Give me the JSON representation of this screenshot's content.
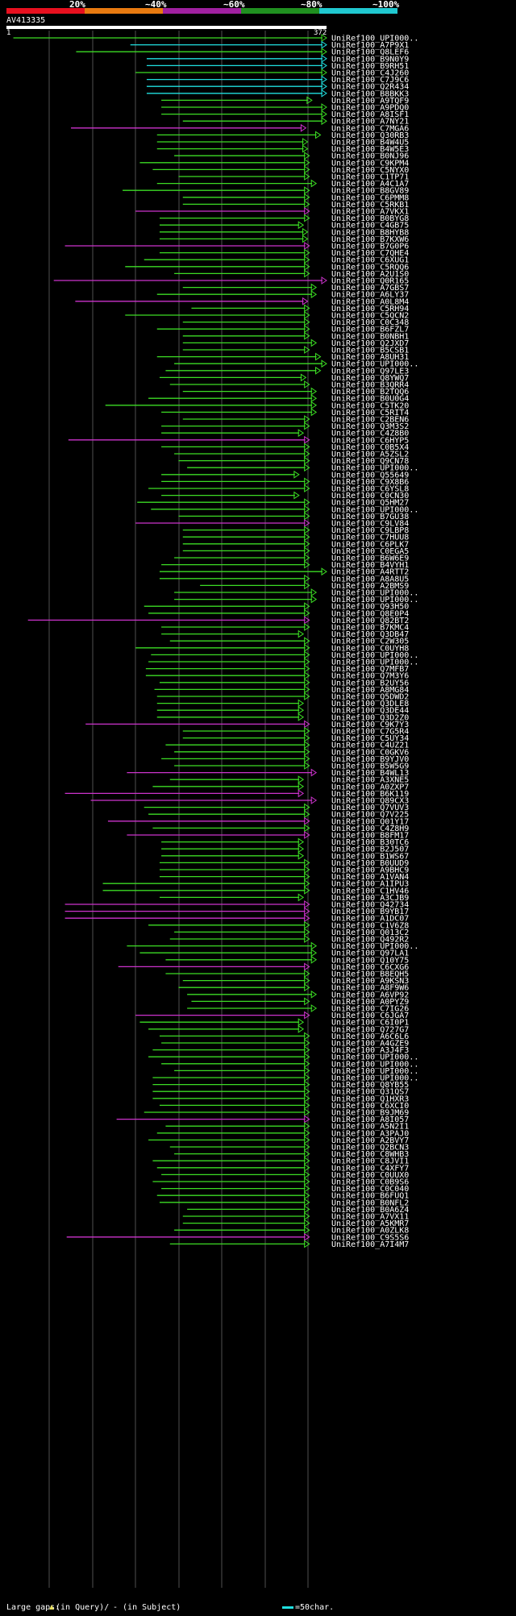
{
  "header": {
    "query_name": "AV413335",
    "query_start": "1",
    "query_end": "372",
    "percent_labels": [
      "20%",
      "~40%",
      "~60%",
      "~80%",
      "~100%"
    ],
    "percent_colors": [
      "#e8101f",
      "#e87a10",
      "#a020a0",
      "#209020",
      "#20c8d0"
    ]
  },
  "colors": {
    "magenta": "#cc33cc",
    "green": "#3cdc24",
    "cyan": "#20e0e0",
    "gap_marker": "#e8e060"
  },
  "hits": [
    {
      "id": "UniRef100_UPI000..",
      "color": "green",
      "start": 8,
      "end": 372
    },
    {
      "id": "UniRef100_A7P9X1",
      "color": "cyan",
      "start": 144,
      "end": 372
    },
    {
      "id": "UniRef100_Q8LEF6",
      "color": "green",
      "start": 81,
      "end": 372
    },
    {
      "id": "UniRef100_B9N0Y9",
      "color": "cyan",
      "start": 163,
      "end": 372
    },
    {
      "id": "UniRef100_B9RH51",
      "color": "cyan",
      "start": 163,
      "end": 372
    },
    {
      "id": "UniRef100_C4J260",
      "color": "green",
      "start": 150,
      "end": 372
    },
    {
      "id": "UniRef100_C7J9C6",
      "color": "cyan",
      "start": 163,
      "end": 372
    },
    {
      "id": "UniRef100_Q2R434",
      "color": "cyan",
      "start": 163,
      "end": 372
    },
    {
      "id": "UniRef100_B8BKK3",
      "color": "cyan",
      "start": 163,
      "end": 372
    },
    {
      "id": "UniRef100_A9TQF9",
      "color": "green",
      "start": 180,
      "end": 355
    },
    {
      "id": "UniRef100_A9PDQ0",
      "color": "green",
      "start": 180,
      "end": 372
    },
    {
      "id": "UniRef100_A8ISF1",
      "color": "green",
      "start": 180,
      "end": 372
    },
    {
      "id": "UniRef100_A7NY21",
      "color": "green",
      "start": 205,
      "end": 372
    },
    {
      "id": "UniRef100_C7MGA6",
      "color": "magenta",
      "start": 75,
      "end": 348
    },
    {
      "id": "UniRef100_Q30RB3",
      "color": "green",
      "start": 175,
      "end": 365
    },
    {
      "id": "UniRef100_B4W4U5",
      "color": "green",
      "start": 175,
      "end": 350
    },
    {
      "id": "UniRef100_B4W5E3",
      "color": "green",
      "start": 175,
      "end": 350
    },
    {
      "id": "UniRef100_B0NJ96",
      "color": "green",
      "start": 195,
      "end": 352
    },
    {
      "id": "UniRef100_C9KPM4",
      "color": "green",
      "start": 155,
      "end": 352
    },
    {
      "id": "UniRef100_C5NYX0",
      "color": "green",
      "start": 170,
      "end": 352
    },
    {
      "id": "UniRef100_C1TP71",
      "color": "green",
      "start": 200,
      "end": 352
    },
    {
      "id": "UniRef100_A4C1A7",
      "color": "green",
      "start": 175,
      "end": 360
    },
    {
      "id": "UniRef100_B8GV89",
      "color": "green",
      "start": 135,
      "end": 352
    },
    {
      "id": "UniRef100_C6PMM8",
      "color": "green",
      "start": 205,
      "end": 352
    },
    {
      "id": "UniRef100_C5RKB1",
      "color": "green",
      "start": 205,
      "end": 352
    },
    {
      "id": "UniRef100_A7VKX1",
      "color": "magenta",
      "start": 150,
      "end": 352
    },
    {
      "id": "UniRef100_B0BYG8",
      "color": "green",
      "start": 178,
      "end": 352
    },
    {
      "id": "UniRef100_C4GB75",
      "color": "green",
      "start": 178,
      "end": 345
    },
    {
      "id": "UniRef100_B8HYB8",
      "color": "green",
      "start": 178,
      "end": 350
    },
    {
      "id": "UniRef100_B7KXW6",
      "color": "green",
      "start": 178,
      "end": 350
    },
    {
      "id": "UniRef100_B7G0P6",
      "color": "magenta",
      "start": 68,
      "end": 352
    },
    {
      "id": "UniRef100_C7QHE4",
      "color": "green",
      "start": 178,
      "end": 352
    },
    {
      "id": "UniRef100_C6XUG1",
      "color": "green",
      "start": 160,
      "end": 352
    },
    {
      "id": "UniRef100_C5RQQ6",
      "color": "green",
      "start": 138,
      "end": 352
    },
    {
      "id": "UniRef100_A2U1S0",
      "color": "green",
      "start": 195,
      "end": 352
    },
    {
      "id": "UniRef100_Q0R165",
      "color": "magenta",
      "start": 55,
      "end": 372
    },
    {
      "id": "UniRef100_A7GBS7",
      "color": "green",
      "start": 205,
      "end": 360
    },
    {
      "id": "UniRef100_A6LY37",
      "color": "green",
      "start": 175,
      "end": 360
    },
    {
      "id": "UniRef100_A0L8M4",
      "color": "magenta",
      "start": 80,
      "end": 350
    },
    {
      "id": "UniRef100_C5RH94",
      "color": "green",
      "start": 215,
      "end": 352
    },
    {
      "id": "UniRef100_C5QCN2",
      "color": "green",
      "start": 138,
      "end": 352
    },
    {
      "id": "UniRef100_C0C348",
      "color": "green",
      "start": 205,
      "end": 352
    },
    {
      "id": "UniRef100_B6FZL7",
      "color": "green",
      "start": 175,
      "end": 352
    },
    {
      "id": "UniRef100_B0NBH1",
      "color": "green",
      "start": 205,
      "end": 352
    },
    {
      "id": "UniRef100_Q2JXD7",
      "color": "green",
      "start": 205,
      "end": 360
    },
    {
      "id": "UniRef100_B5CSB1",
      "color": "green",
      "start": 205,
      "end": 352
    },
    {
      "id": "UniRef100_A8UH31",
      "color": "green",
      "start": 175,
      "end": 365
    },
    {
      "id": "UniRef100_UPI000..",
      "color": "green",
      "start": 195,
      "end": 372
    },
    {
      "id": "UniRef100_Q97LE3",
      "color": "green",
      "start": 185,
      "end": 365
    },
    {
      "id": "UniRef100_Q8YWQ7",
      "color": "green",
      "start": 178,
      "end": 348
    },
    {
      "id": "UniRef100_B3QRR4",
      "color": "green",
      "start": 190,
      "end": 352
    },
    {
      "id": "UniRef100_B2TQQ6",
      "color": "green",
      "start": 205,
      "end": 360
    },
    {
      "id": "UniRef100_B0U0G4",
      "color": "green",
      "start": 165,
      "end": 360
    },
    {
      "id": "UniRef100_C5TK20",
      "color": "green",
      "start": 115,
      "end": 360
    },
    {
      "id": "UniRef100_C5RIT4",
      "color": "green",
      "start": 180,
      "end": 360
    },
    {
      "id": "UniRef100_C2BEN6",
      "color": "green",
      "start": 205,
      "end": 352
    },
    {
      "id": "UniRef100_Q3M3S2",
      "color": "green",
      "start": 180,
      "end": 352
    },
    {
      "id": "UniRef100_C4Z8B0",
      "color": "green",
      "start": 180,
      "end": 345
    },
    {
      "id": "UniRef100_C6HYP5",
      "color": "magenta",
      "start": 72,
      "end": 352
    },
    {
      "id": "UniRef100_C0B5X4",
      "color": "green",
      "start": 180,
      "end": 352
    },
    {
      "id": "UniRef100_A5ZSL2",
      "color": "green",
      "start": 195,
      "end": 352
    },
    {
      "id": "UniRef100_Q9CN78",
      "color": "green",
      "start": 200,
      "end": 352
    },
    {
      "id": "UniRef100_UPI000..",
      "color": "green",
      "start": 210,
      "end": 352
    },
    {
      "id": "UniRef100_Q55649",
      "color": "green",
      "start": 180,
      "end": 340
    },
    {
      "id": "UniRef100_C9X8B6",
      "color": "green",
      "start": 180,
      "end": 352
    },
    {
      "id": "UniRef100_C6YSL8",
      "color": "green",
      "start": 165,
      "end": 352
    },
    {
      "id": "UniRef100_C0CN30",
      "color": "green",
      "start": 180,
      "end": 340
    },
    {
      "id": "UniRef100_Q5HM27",
      "color": "green",
      "start": 152,
      "end": 352
    },
    {
      "id": "UniRef100_UPI000..",
      "color": "green",
      "start": 168,
      "end": 352
    },
    {
      "id": "UniRef100_B7GU38",
      "color": "green",
      "start": 200,
      "end": 352
    },
    {
      "id": "UniRef100_C9LV84",
      "color": "magenta",
      "start": 150,
      "end": 352
    },
    {
      "id": "UniRef100_C9LBP8",
      "color": "green",
      "start": 205,
      "end": 352
    },
    {
      "id": "UniRef100_C7HUU8",
      "color": "green",
      "start": 205,
      "end": 352
    },
    {
      "id": "UniRef100_C6PLK7",
      "color": "green",
      "start": 205,
      "end": 352
    },
    {
      "id": "UniRef100_C0EGA5",
      "color": "green",
      "start": 205,
      "end": 352
    },
    {
      "id": "UniRef100_B6W6E9",
      "color": "green",
      "start": 195,
      "end": 352
    },
    {
      "id": "UniRef100_B4VYH1",
      "color": "green",
      "start": 180,
      "end": 352
    },
    {
      "id": "UniRef100_A4RTT2",
      "color": "green",
      "start": 178,
      "end": 372
    },
    {
      "id": "UniRef100_A8A8U5",
      "color": "green",
      "start": 178,
      "end": 352
    },
    {
      "id": "UniRef100_A2BMS9",
      "color": "green",
      "start": 225,
      "end": 352
    },
    {
      "id": "UniRef100_UPI000..",
      "color": "green",
      "start": 195,
      "end": 360
    },
    {
      "id": "UniRef100_UPI000..",
      "color": "green",
      "start": 195,
      "end": 360
    },
    {
      "id": "UniRef100_Q93H50",
      "color": "green",
      "start": 160,
      "end": 352
    },
    {
      "id": "UniRef100_Q8E0P4",
      "color": "green",
      "start": 165,
      "end": 352
    },
    {
      "id": "UniRef100_Q82BT2",
      "color": "magenta",
      "start": 25,
      "end": 352
    },
    {
      "id": "UniRef100_B7KMC4",
      "color": "green",
      "start": 180,
      "end": 352
    },
    {
      "id": "UniRef100_Q3DB47",
      "color": "green",
      "start": 180,
      "end": 345
    },
    {
      "id": "UniRef100_C2W305",
      "color": "green",
      "start": 190,
      "end": 352
    },
    {
      "id": "UniRef100_C0UYH8",
      "color": "green",
      "start": 150,
      "end": 352
    },
    {
      "id": "UniRef100_UPI000..",
      "color": "green",
      "start": 168,
      "end": 352
    },
    {
      "id": "UniRef100_UPI000..",
      "color": "green",
      "start": 165,
      "end": 352
    },
    {
      "id": "UniRef100_Q7MFB7",
      "color": "green",
      "start": 162,
      "end": 352
    },
    {
      "id": "UniRef100_Q7M3Y6",
      "color": "green",
      "start": 162,
      "end": 352
    },
    {
      "id": "UniRef100_B2UY56",
      "color": "green",
      "start": 178,
      "end": 352
    },
    {
      "id": "UniRef100_A8MG84",
      "color": "green",
      "start": 172,
      "end": 352
    },
    {
      "id": "UniRef100_Q5DWD2",
      "color": "green",
      "start": 175,
      "end": 352
    },
    {
      "id": "UniRef100_Q3DLE8",
      "color": "green",
      "start": 175,
      "end": 345
    },
    {
      "id": "UniRef100_Q3DE44",
      "color": "green",
      "start": 175,
      "end": 345
    },
    {
      "id": "UniRef100_Q3D2Z0",
      "color": "green",
      "start": 175,
      "end": 345
    },
    {
      "id": "UniRef100_C9K7Y3",
      "color": "magenta",
      "start": 92,
      "end": 352
    },
    {
      "id": "UniRef100_C7G5R4",
      "color": "green",
      "start": 205,
      "end": 352
    },
    {
      "id": "UniRef100_C5UY34",
      "color": "green",
      "start": 205,
      "end": 352
    },
    {
      "id": "UniRef100_C4UZ21",
      "color": "green",
      "start": 185,
      "end": 352
    },
    {
      "id": "UniRef100_C0GKV6",
      "color": "green",
      "start": 195,
      "end": 352
    },
    {
      "id": "UniRef100_B9YJV0",
      "color": "green",
      "start": 180,
      "end": 352
    },
    {
      "id": "UniRef100_B5W5G9",
      "color": "green",
      "start": 195,
      "end": 352
    },
    {
      "id": "UniRef100_B4WL13",
      "color": "magenta",
      "start": 140,
      "end": 360
    },
    {
      "id": "UniRef100_A3XNE5",
      "color": "green",
      "start": 190,
      "end": 345
    },
    {
      "id": "UniRef100_A0ZXP7",
      "color": "green",
      "start": 170,
      "end": 345
    },
    {
      "id": "UniRef100_B6K119",
      "color": "magenta",
      "start": 68,
      "end": 345
    },
    {
      "id": "UniRef100_Q89CX3",
      "color": "magenta",
      "start": 98,
      "end": 360
    },
    {
      "id": "UniRef100_Q7VUV3",
      "color": "green",
      "start": 160,
      "end": 352
    },
    {
      "id": "UniRef100_Q7V225",
      "color": "green",
      "start": 165,
      "end": 352
    },
    {
      "id": "UniRef100_Q01Y17",
      "color": "magenta",
      "start": 118,
      "end": 352
    },
    {
      "id": "UniRef100_C4Z8H9",
      "color": "green",
      "start": 170,
      "end": 352
    },
    {
      "id": "UniRef100_B8FM17",
      "color": "magenta",
      "start": 140,
      "end": 352
    },
    {
      "id": "UniRef100_B30TC6",
      "color": "green",
      "start": 180,
      "end": 345
    },
    {
      "id": "UniRef100_B2J507",
      "color": "green",
      "start": 180,
      "end": 345
    },
    {
      "id": "UniRef100_B1WS67",
      "color": "green",
      "start": 180,
      "end": 345
    },
    {
      "id": "UniRef100_B0UUD9",
      "color": "green",
      "start": 178,
      "end": 352
    },
    {
      "id": "UniRef100_A9BHC9",
      "color": "green",
      "start": 178,
      "end": 352
    },
    {
      "id": "UniRef100_A1VAN4",
      "color": "green",
      "start": 178,
      "end": 352
    },
    {
      "id": "UniRef100_A1IPU3",
      "color": "green",
      "start": 112,
      "end": 352
    },
    {
      "id": "UniRef100_C1HV46",
      "color": "green",
      "start": 112,
      "end": 352
    },
    {
      "id": "UniRef100_A3CJB9",
      "color": "green",
      "start": 178,
      "end": 345
    },
    {
      "id": "UniRef100_Q42734",
      "color": "magenta",
      "start": 68,
      "end": 352
    },
    {
      "id": "UniRef100_B9YB17",
      "color": "magenta",
      "start": 68,
      "end": 352
    },
    {
      "id": "UniRef100_A1DC07",
      "color": "magenta",
      "start": 68,
      "end": 352
    },
    {
      "id": "UniRef100_C1V6Z8",
      "color": "green",
      "start": 165,
      "end": 352
    },
    {
      "id": "UniRef100_Q013C2",
      "color": "green",
      "start": 195,
      "end": 352
    },
    {
      "id": "UniRef100_Q492R2",
      "color": "green",
      "start": 190,
      "end": 352
    },
    {
      "id": "UniRef100_UPI000..",
      "color": "green",
      "start": 140,
      "end": 360
    },
    {
      "id": "UniRef100_Q97LA1",
      "color": "green",
      "start": 155,
      "end": 360
    },
    {
      "id": "UniRef100_Q10Y75",
      "color": "green",
      "start": 185,
      "end": 360
    },
    {
      "id": "UniRef100_C6CXG6",
      "color": "magenta",
      "start": 130,
      "end": 352
    },
    {
      "id": "UniRef100_B8EQH5",
      "color": "green",
      "start": 185,
      "end": 352
    },
    {
      "id": "UniRef100_A9KSN3",
      "color": "green",
      "start": 205,
      "end": 352
    },
    {
      "id": "UniRef100_A8F9W6",
      "color": "green",
      "start": 200,
      "end": 352
    },
    {
      "id": "UniRef100_A6VP92",
      "color": "green",
      "start": 210,
      "end": 360
    },
    {
      "id": "UniRef100_A0PYZ9",
      "color": "green",
      "start": 215,
      "end": 352
    },
    {
      "id": "UniRef100_C7IG26",
      "color": "green",
      "start": 210,
      "end": 360
    },
    {
      "id": "UniRef100_C6JGA7",
      "color": "magenta",
      "start": 150,
      "end": 352
    },
    {
      "id": "UniRef100_C6I0P1",
      "color": "green",
      "start": 155,
      "end": 345
    },
    {
      "id": "UniRef100_Q727G7",
      "color": "green",
      "start": 165,
      "end": 345
    },
    {
      "id": "UniRef100_A6C6L6",
      "color": "green",
      "start": 178,
      "end": 352
    },
    {
      "id": "UniRef100_A4GZE9",
      "color": "green",
      "start": 180,
      "end": 352
    },
    {
      "id": "UniRef100_A3J4F3",
      "color": "green",
      "start": 170,
      "end": 352
    },
    {
      "id": "UniRef100_UPI000..",
      "color": "green",
      "start": 165,
      "end": 352
    },
    {
      "id": "UniRef100_UPI000..",
      "color": "green",
      "start": 180,
      "end": 352
    },
    {
      "id": "UniRef100_UPI000..",
      "color": "green",
      "start": 195,
      "end": 352
    },
    {
      "id": "UniRef100_UPI000..",
      "color": "green",
      "start": 170,
      "end": 352
    },
    {
      "id": "UniRef100_Q8YB55",
      "color": "green",
      "start": 170,
      "end": 352
    },
    {
      "id": "UniRef100_Q31QS7",
      "color": "green",
      "start": 170,
      "end": 352
    },
    {
      "id": "UniRef100_Q1HXR3",
      "color": "green",
      "start": 170,
      "end": 352
    },
    {
      "id": "UniRef100_C6XCI0",
      "color": "green",
      "start": 178,
      "end": 352
    },
    {
      "id": "UniRef100_B9JM69",
      "color": "green",
      "start": 160,
      "end": 352
    },
    {
      "id": "UniRef100_A8I057",
      "color": "magenta",
      "start": 128,
      "end": 352
    },
    {
      "id": "UniRef100_A5N2I1",
      "color": "green",
      "start": 185,
      "end": 352
    },
    {
      "id": "UniRef100_A3PAJ0",
      "color": "green",
      "start": 175,
      "end": 352
    },
    {
      "id": "UniRef100_A2BVY7",
      "color": "green",
      "start": 165,
      "end": 352
    },
    {
      "id": "UniRef100_Q2BCN3",
      "color": "green",
      "start": 190,
      "end": 352
    },
    {
      "id": "UniRef100_C8WHB3",
      "color": "green",
      "start": 195,
      "end": 352
    },
    {
      "id": "UniRef100_C8JVI1",
      "color": "green",
      "start": 170,
      "end": 352
    },
    {
      "id": "UniRef100_C4XFY7",
      "color": "green",
      "start": 175,
      "end": 352
    },
    {
      "id": "UniRef100_C0UUX0",
      "color": "green",
      "start": 180,
      "end": 352
    },
    {
      "id": "UniRef100_C0B9S6",
      "color": "green",
      "start": 170,
      "end": 352
    },
    {
      "id": "UniRef100_C0C040",
      "color": "green",
      "start": 180,
      "end": 352
    },
    {
      "id": "UniRef100_B6FUQ1",
      "color": "green",
      "start": 175,
      "end": 352
    },
    {
      "id": "UniRef100_B0NFL2",
      "color": "green",
      "start": 178,
      "end": 352
    },
    {
      "id": "UniRef100_B0A6Z4",
      "color": "green",
      "start": 210,
      "end": 352
    },
    {
      "id": "UniRef100_A7VX11",
      "color": "green",
      "start": 205,
      "end": 352
    },
    {
      "id": "UniRef100_A5KMR7",
      "color": "green",
      "start": 205,
      "end": 352
    },
    {
      "id": "UniRef100_A0ZLK8",
      "color": "green",
      "start": 195,
      "end": 352
    },
    {
      "id": "UniRef100_C9S5S6",
      "color": "magenta",
      "start": 70,
      "end": 352
    },
    {
      "id": "UniRef100_A7I4M7",
      "color": "green",
      "start": 190,
      "end": 352
    }
  ],
  "legend": {
    "large_gaps_label": "Large gaps:",
    "query_gap_text": "(in Query)/",
    "subject_gap_text": "- (in Subject)",
    "scale_text": "=50char."
  }
}
